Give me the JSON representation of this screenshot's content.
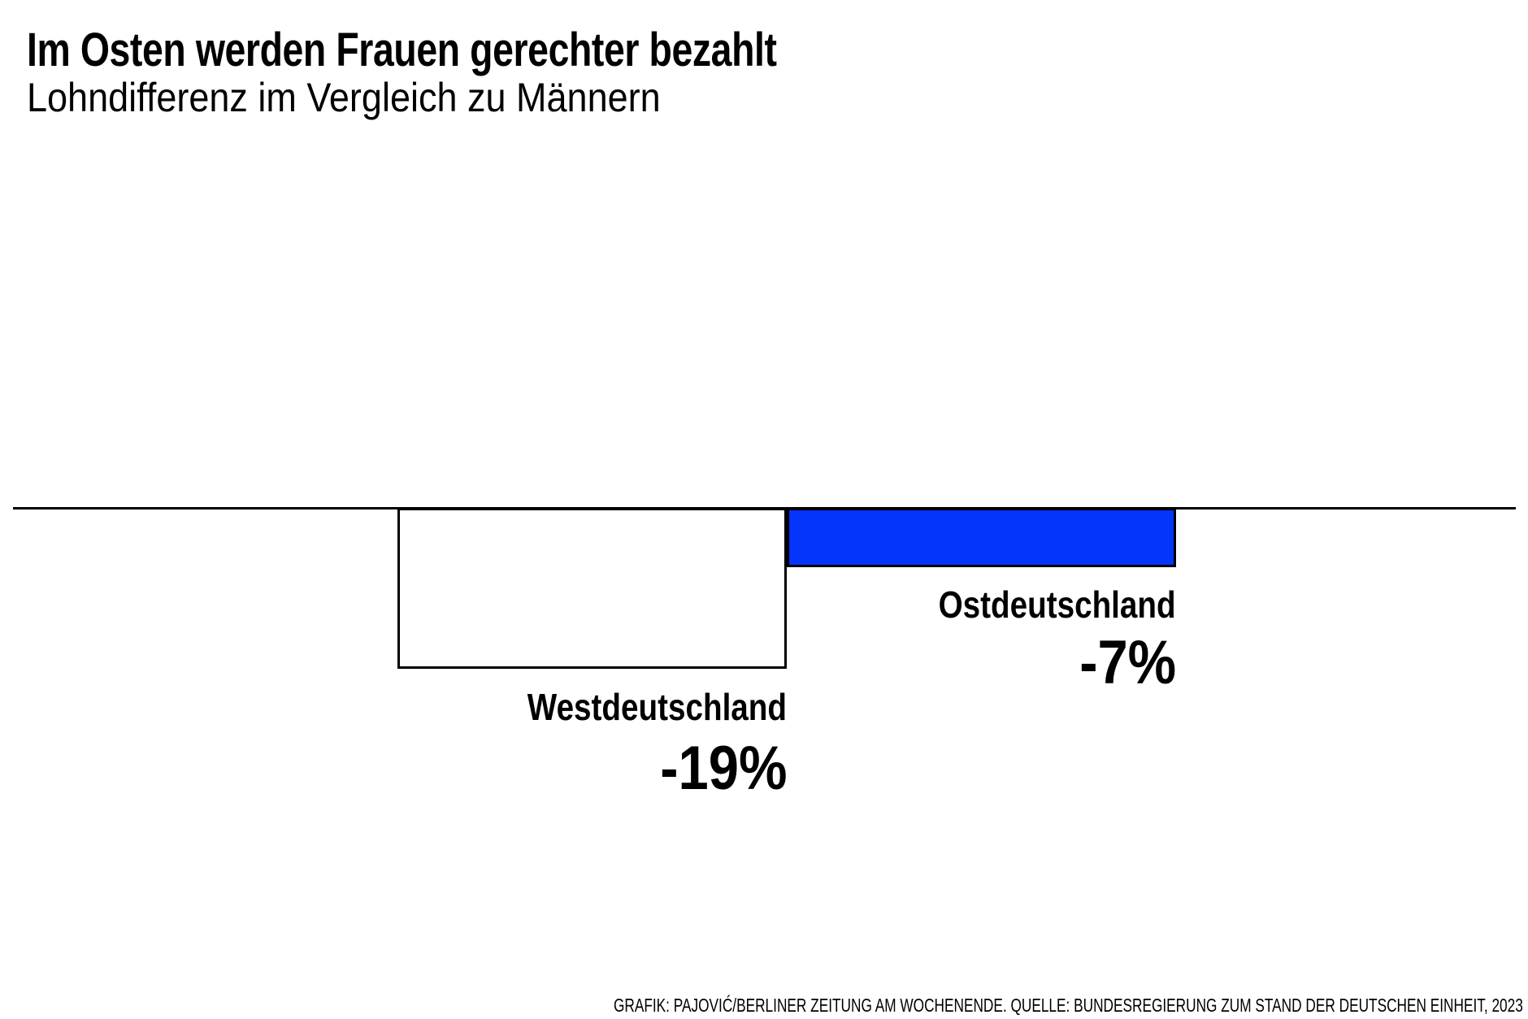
{
  "header": {
    "title": "Im Osten werden Frauen gerechter bezahlt",
    "subtitle": "Lohndifferenz im Vergleich zu Männern"
  },
  "chart_data": {
    "type": "bar",
    "title": "Im Osten werden Frauen gerechter bezahlt",
    "subtitle": "Lohndifferenz im Vergleich zu Männern",
    "categories": [
      "Westdeutschland",
      "Ostdeutschland"
    ],
    "values": [
      -19,
      -7
    ],
    "value_labels": [
      "-19%",
      "-7%"
    ],
    "unit": "percent",
    "baseline": 0,
    "ylim": [
      -20,
      0
    ],
    "orientation": "columns-hanging-below-zero-line",
    "bar_colors": [
      "#ffffff",
      "#0435fb"
    ],
    "bar_border_color": "#000000",
    "zero_line_color": "#000000",
    "grid": false,
    "legend": "none"
  },
  "footer": {
    "credit": "GRAFIK: PAJOVIĆ/BERLINER ZEITUNG AM WOCHENENDE. QUELLE: BUNDESREGIERUNG ZUM STAND DER DEUTSCHEN EINHEIT, 2023"
  },
  "colors": {
    "background": "#ffffff",
    "text": "#000000",
    "accent_blue": "#0435fb"
  }
}
